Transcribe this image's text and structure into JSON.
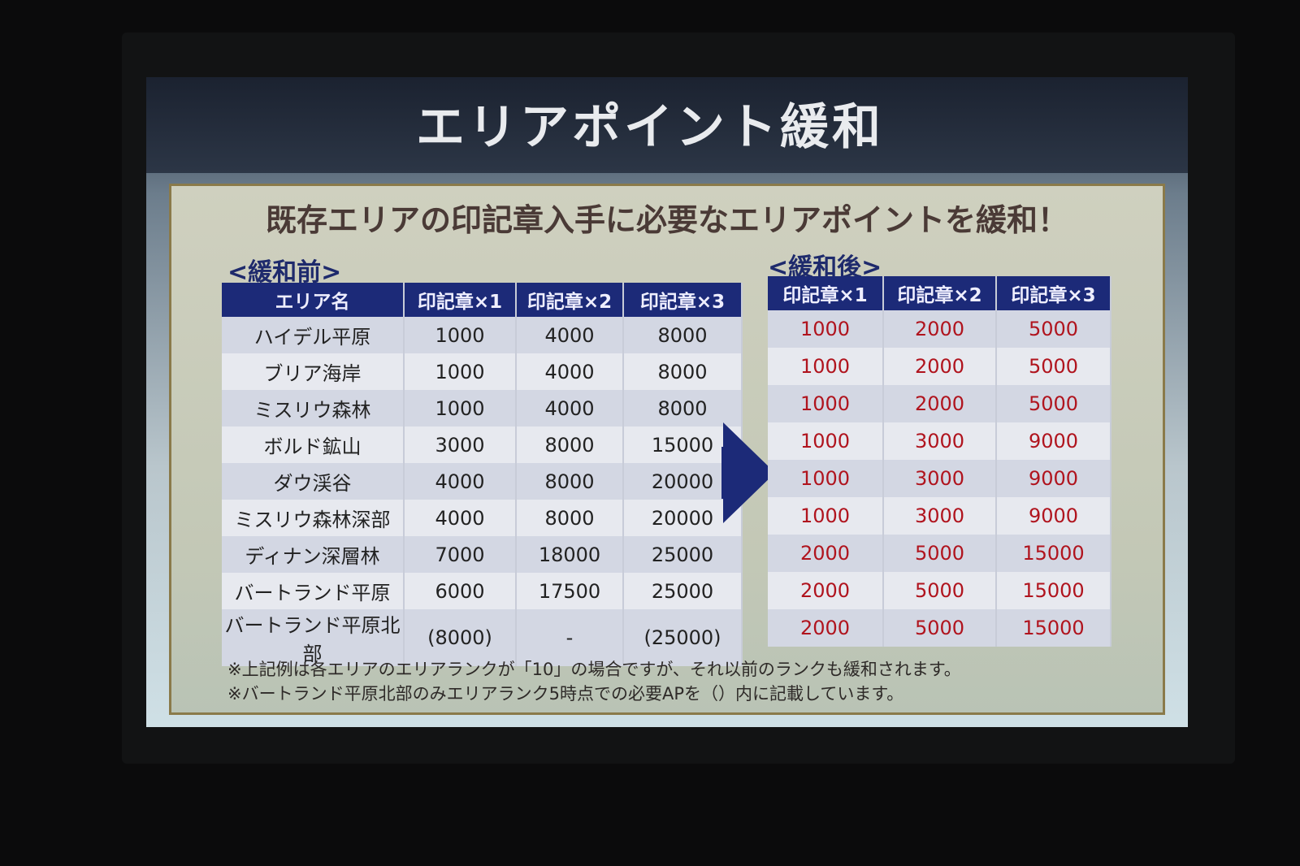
{
  "title": "エリアポイント緩和",
  "subtitle": "既存エリアの印記章入手に必要なエリアポイントを緩和！",
  "before": {
    "label": "<緩和前>",
    "headers": [
      "エリア名",
      "印記章×1",
      "印記章×2",
      "印記章×3"
    ],
    "rows": [
      [
        "ハイデル平原",
        "1000",
        "4000",
        "8000"
      ],
      [
        "ブリア海岸",
        "1000",
        "4000",
        "8000"
      ],
      [
        "ミスリウ森林",
        "1000",
        "4000",
        "8000"
      ],
      [
        "ボルド鉱山",
        "3000",
        "8000",
        "15000"
      ],
      [
        "ダウ渓谷",
        "4000",
        "8000",
        "20000"
      ],
      [
        "ミスリウ森林深部",
        "4000",
        "8000",
        "20000"
      ],
      [
        "ディナン深層林",
        "7000",
        "18000",
        "25000"
      ],
      [
        "バートランド平原",
        "6000",
        "17500",
        "25000"
      ],
      [
        "バートランド平原北部",
        "(8000)",
        "-",
        "(25000)"
      ]
    ]
  },
  "after": {
    "label": "<緩和後>",
    "headers": [
      "印記章×1",
      "印記章×2",
      "印記章×3"
    ],
    "rows": [
      [
        "1000",
        "2000",
        "5000"
      ],
      [
        "1000",
        "2000",
        "5000"
      ],
      [
        "1000",
        "2000",
        "5000"
      ],
      [
        "1000",
        "3000",
        "9000"
      ],
      [
        "1000",
        "3000",
        "9000"
      ],
      [
        "1000",
        "3000",
        "9000"
      ],
      [
        "2000",
        "5000",
        "15000"
      ],
      [
        "2000",
        "5000",
        "15000"
      ],
      [
        "2000",
        "5000",
        "15000"
      ]
    ]
  },
  "notes": [
    "※上記例は各エリアのエリアランクが「10」の場合ですが、それ以前のランクも緩和されます。",
    "※バートランド平原北部のみエリアランク5時点での必要APを（）内に記載しています。"
  ],
  "colors": {
    "header": "#1c2a78",
    "after_values": "#b0141e"
  }
}
